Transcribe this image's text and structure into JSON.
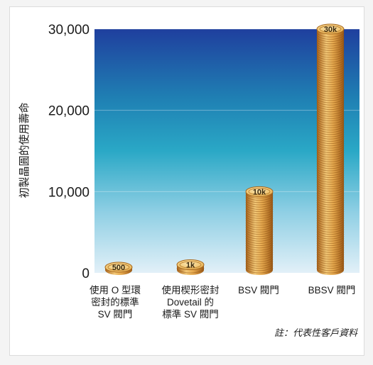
{
  "chart_data": {
    "type": "bar",
    "title": "",
    "xlabel": "",
    "ylabel": "初製晶圓的使用壽命",
    "ylim": [
      0,
      30000
    ],
    "yticks": [
      "0",
      "10,000",
      "20,000",
      "30,000"
    ],
    "categories": [
      [
        "使用 O 型環",
        "密封的標準",
        "SV 閥門"
      ],
      [
        "使用楔形密封",
        "Dovetail 的",
        "標準 SV 閥門"
      ],
      [
        "BSV 閥門"
      ],
      [
        "BBSV 閥門"
      ]
    ],
    "values": [
      500,
      1000,
      10000,
      30000
    ],
    "data_labels": [
      "500",
      "1k",
      "10k",
      "30k"
    ],
    "note": "註：代表性客戶資料",
    "grid": true,
    "colors": {
      "plot_top": "#1f4fa8",
      "plot_mid": "#2aa6c4",
      "plot_bottom": "#d8ecf6",
      "coin_light": "#f6d58a",
      "coin_dark": "#b06a1e",
      "coin_edge": "#8a4f12"
    }
  }
}
